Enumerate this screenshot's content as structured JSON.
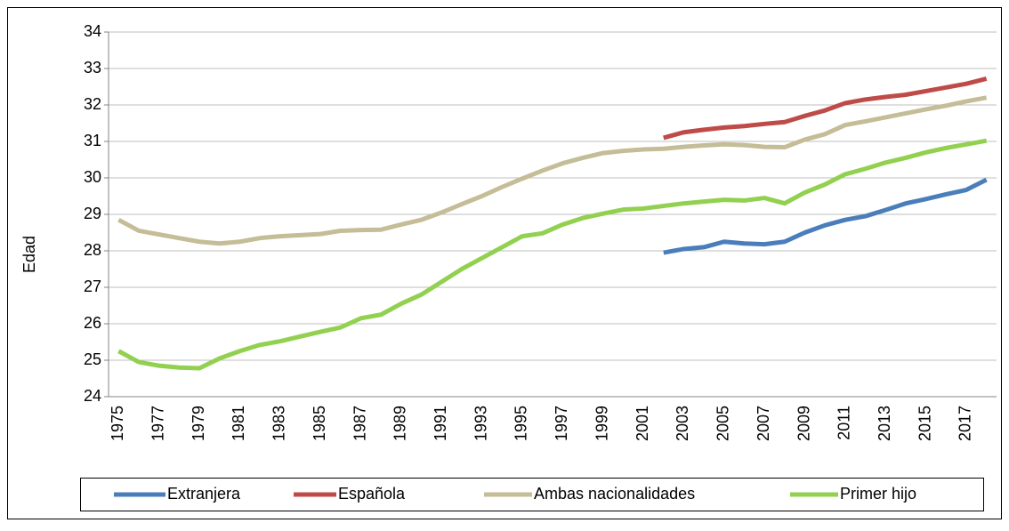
{
  "chart_data": {
    "type": "line",
    "ylabel": "Edad",
    "categories": [
      "1975",
      null,
      "1977",
      null,
      "1979",
      null,
      "1981",
      null,
      "1983",
      null,
      "1985",
      null,
      "1987",
      null,
      "1989",
      null,
      "1991",
      null,
      "1993",
      null,
      "1995",
      null,
      "1997",
      null,
      "1999",
      null,
      "2001",
      null,
      "2003",
      null,
      "2005",
      null,
      "2007",
      null,
      "2009",
      null,
      "2011",
      null,
      "2013",
      null,
      "2015",
      null,
      "2017",
      null
    ],
    "ylim": [
      24,
      34
    ],
    "yticks": [
      24,
      25,
      26,
      27,
      28,
      29,
      30,
      31,
      32,
      33,
      34
    ],
    "grid": true,
    "legend": "bottom",
    "series": [
      {
        "name": "Extranjera",
        "color": "#4a7ebb",
        "values": [
          null,
          null,
          null,
          null,
          null,
          null,
          null,
          null,
          null,
          null,
          null,
          null,
          null,
          null,
          null,
          null,
          null,
          null,
          null,
          null,
          null,
          null,
          null,
          null,
          null,
          null,
          null,
          27.95,
          28.05,
          28.1,
          28.25,
          28.2,
          28.18,
          28.25,
          28.5,
          28.7,
          28.85,
          28.95,
          29.12,
          29.3,
          29.42,
          29.55,
          29.67,
          29.95
        ]
      },
      {
        "name": "Española",
        "color": "#be4b48",
        "values": [
          null,
          null,
          null,
          null,
          null,
          null,
          null,
          null,
          null,
          null,
          null,
          null,
          null,
          null,
          null,
          null,
          null,
          null,
          null,
          null,
          null,
          null,
          null,
          null,
          null,
          null,
          null,
          31.1,
          31.25,
          31.32,
          31.38,
          31.42,
          31.48,
          31.53,
          31.7,
          31.85,
          32.05,
          32.15,
          32.22,
          32.28,
          32.38,
          32.48,
          32.58,
          32.72
        ]
      },
      {
        "name": "Ambas nacionalidades",
        "color": "#c4bd97",
        "values": [
          28.85,
          28.55,
          28.45,
          28.35,
          28.25,
          28.2,
          28.25,
          28.35,
          28.4,
          28.43,
          28.46,
          28.55,
          28.57,
          28.58,
          28.72,
          28.85,
          29.05,
          29.28,
          29.5,
          29.75,
          29.98,
          30.2,
          30.4,
          30.55,
          30.68,
          30.74,
          30.78,
          30.8,
          30.85,
          30.89,
          30.92,
          30.9,
          30.85,
          30.84,
          31.05,
          31.2,
          31.45,
          31.55,
          31.66,
          31.77,
          31.88,
          31.98,
          32.1,
          32.2
        ]
      },
      {
        "name": "Primer hijo",
        "color": "#92d050",
        "values": [
          25.25,
          24.95,
          24.85,
          24.8,
          24.78,
          25.05,
          25.25,
          25.42,
          25.52,
          25.65,
          25.78,
          25.9,
          26.15,
          26.25,
          26.55,
          26.8,
          27.15,
          27.5,
          27.8,
          28.1,
          28.4,
          28.48,
          28.72,
          28.9,
          29.02,
          29.13,
          29.16,
          29.23,
          29.3,
          29.35,
          29.4,
          29.38,
          29.45,
          29.3,
          29.6,
          29.82,
          30.1,
          30.25,
          30.42,
          30.55,
          30.7,
          30.82,
          30.92,
          31.02
        ]
      }
    ]
  }
}
